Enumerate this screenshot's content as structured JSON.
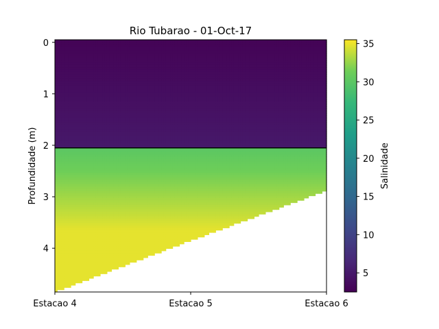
{
  "chart_data": {
    "type": "heatmap",
    "title": "Rio Tubarao - 01-Oct-17",
    "ylabel": "Profundidade (m)",
    "xlabel": "",
    "x_categories": [
      "Estacao 4",
      "Estacao 5",
      "Estacao 6"
    ],
    "y_ticks": [
      0,
      1,
      2,
      3,
      4
    ],
    "ylim": [
      4.85,
      -0.05
    ],
    "depth_at_bottom": [
      4.85,
      3.85,
      2.88
    ],
    "colorbar": {
      "label": "Salinidade",
      "ticks": [
        5,
        10,
        15,
        20,
        25,
        30,
        35
      ],
      "range": [
        2.5,
        35.5
      ],
      "colormap": "viridis"
    },
    "contours": [
      {
        "level": 30,
        "points": [
          [
            0.0,
            2.05
          ],
          [
            0.04,
            2.05
          ],
          [
            0.18,
            2.05
          ],
          [
            0.3,
            2.05
          ],
          [
            0.48,
            2.05
          ],
          [
            0.58,
            2.05
          ],
          [
            0.75,
            2.05
          ],
          [
            0.82,
            2.05
          ],
          [
            0.88,
            2.05
          ],
          [
            0.96,
            2.05
          ],
          [
            1.0,
            2.05
          ]
        ]
      },
      {
        "level": 25,
        "points": [
          [
            0.0,
            2.05
          ],
          [
            0.05,
            2.05
          ],
          [
            0.2,
            2.05
          ],
          [
            0.3,
            2.05
          ],
          [
            0.4,
            2.05
          ],
          [
            0.6,
            2.05
          ],
          [
            0.75,
            2.05
          ],
          [
            0.82,
            2.05
          ],
          [
            0.88,
            2.05
          ],
          [
            0.96,
            2.05
          ],
          [
            1.0,
            2.05
          ]
        ]
      },
      {
        "level": 20,
        "points": [
          [
            0.0,
            2.05
          ],
          [
            0.06,
            2.05
          ],
          [
            0.24,
            2.05
          ],
          [
            0.28,
            2.05
          ],
          [
            0.36,
            2.05
          ],
          [
            0.44,
            2.05
          ],
          [
            0.58,
            2.05
          ],
          [
            0.65,
            2.05
          ],
          [
            0.75,
            2.05
          ],
          [
            0.9,
            2.05
          ],
          [
            1.0,
            2.05
          ]
        ]
      },
      {
        "level": 15,
        "points": [
          [
            0.0,
            2.05
          ],
          [
            0.06,
            2.05
          ],
          [
            0.2,
            2.05
          ],
          [
            0.34,
            2.05
          ],
          [
            0.5,
            2.05
          ],
          [
            0.66,
            2.05
          ],
          [
            0.76,
            2.05
          ],
          [
            0.86,
            2.05
          ],
          [
            0.94,
            2.05
          ],
          [
            1.0,
            2.05
          ]
        ]
      },
      {
        "level": 10,
        "points": [
          [
            0.0,
            2.05
          ],
          [
            0.06,
            2.05
          ],
          [
            0.16,
            2.05
          ],
          [
            0.28,
            2.05
          ],
          [
            0.4,
            2.05
          ],
          [
            0.56,
            2.05
          ],
          [
            0.72,
            2.05
          ],
          [
            0.82,
            2.05
          ],
          [
            0.92,
            2.05
          ],
          [
            1.0,
            2.05
          ]
        ]
      },
      {
        "level": 5,
        "points": [
          [
            0.0,
            2.05
          ],
          [
            0.05,
            2.05
          ],
          [
            0.12,
            2.05
          ],
          [
            0.24,
            2.05
          ],
          [
            0.33,
            2.05
          ],
          [
            0.42,
            2.05
          ],
          [
            0.52,
            2.05
          ],
          [
            0.62,
            2.05
          ],
          [
            0.72,
            2.05
          ],
          [
            0.85,
            2.05
          ],
          [
            1.0,
            2.05
          ]
        ]
      }
    ]
  }
}
